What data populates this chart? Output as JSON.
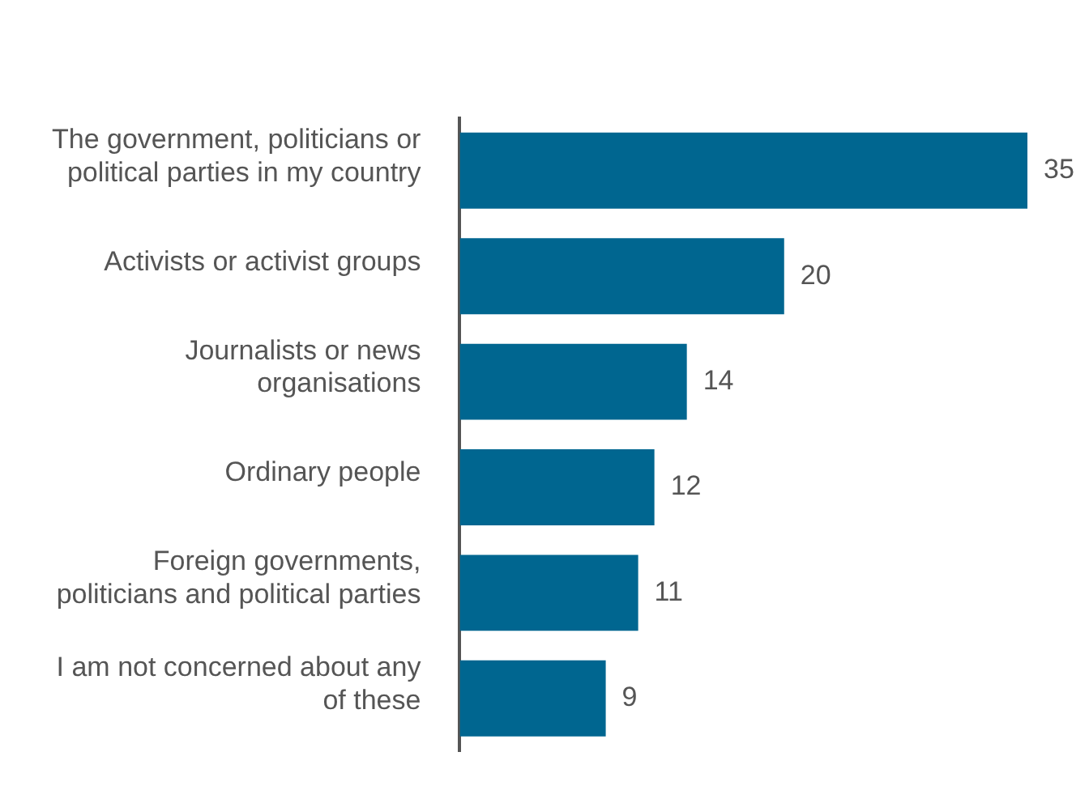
{
  "chart_data": {
    "type": "bar",
    "orientation": "horizontal",
    "categories": [
      "The government, politicians or political parties in my country",
      "Activists or activist groups",
      "Journalists or news organisations",
      "Ordinary people",
      "Foreign governments, politicians and political parties",
      "I am not concerned about any of these"
    ],
    "values": [
      35,
      20,
      14,
      12,
      11,
      9
    ],
    "color": "#006690",
    "data_labels": true,
    "legend": false
  }
}
